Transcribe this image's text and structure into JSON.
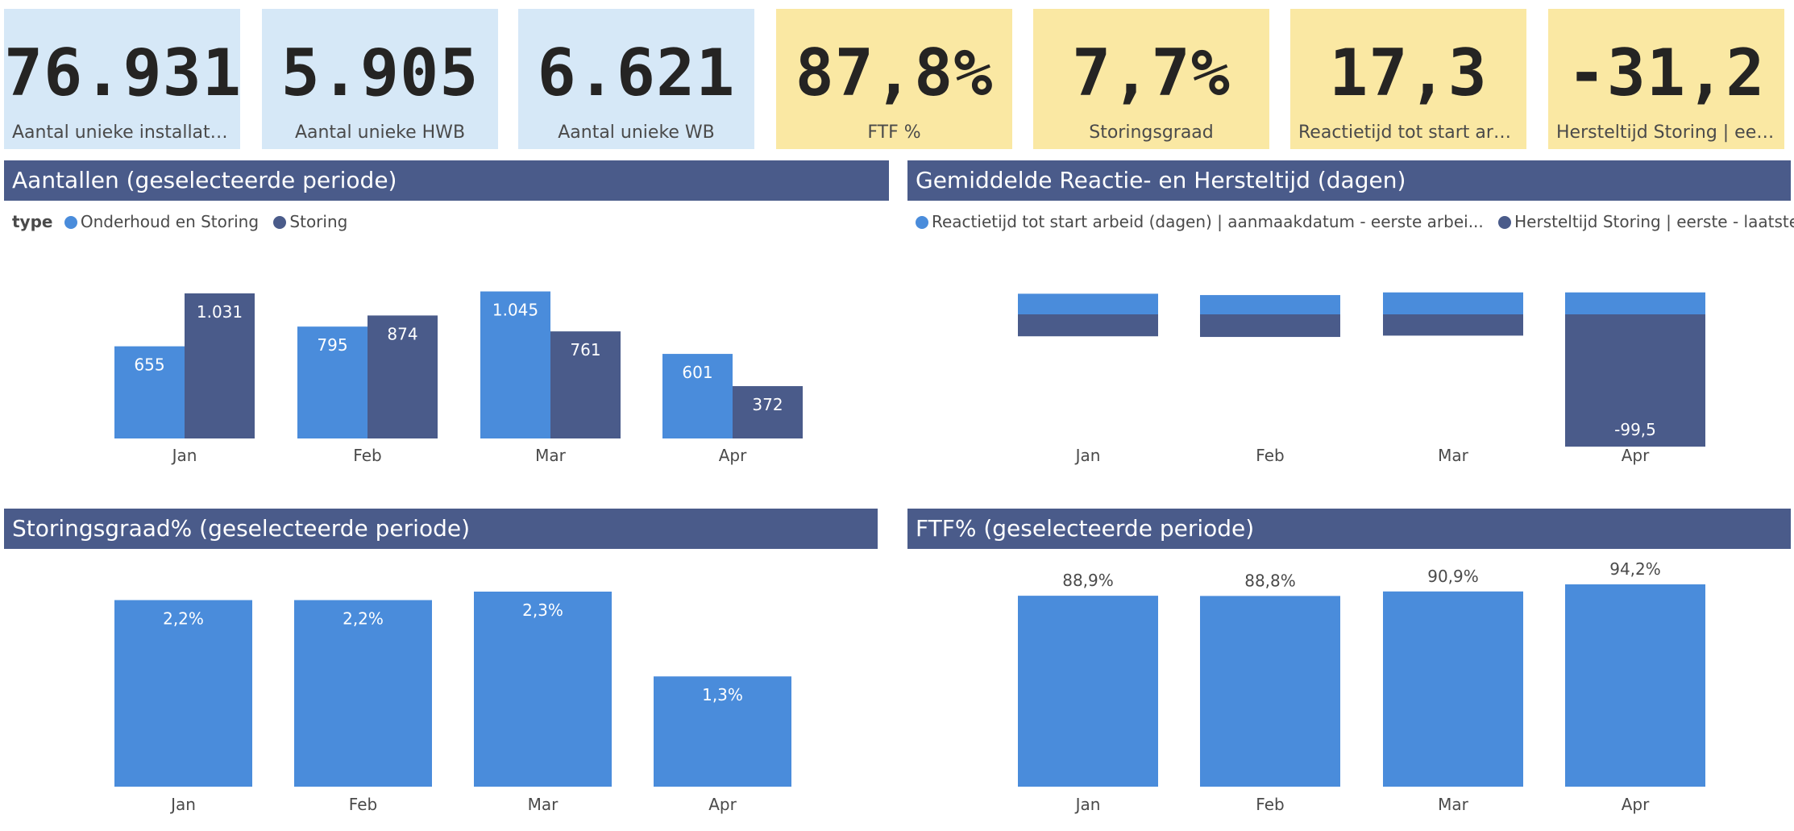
{
  "colors": {
    "light_blue": "#4a8cdb",
    "dark_blue": "#4a5b8a",
    "kpi_blue": "#d6e8f7",
    "kpi_yellow": "#fae8a3"
  },
  "kpis": [
    {
      "value": "76.931",
      "label": "Aantal unieke installaties",
      "style": "blue"
    },
    {
      "value": "5.905",
      "label": "Aantal unieke HWB",
      "style": "blue"
    },
    {
      "value": "6.621",
      "label": "Aantal unieke WB",
      "style": "blue"
    },
    {
      "value": "87,8%",
      "label": "FTF %",
      "style": "yellow"
    },
    {
      "value": "7,7%",
      "label": "Storingsgraad",
      "style": "yellow"
    },
    {
      "value": "17,3",
      "label": "Reactietijd tot start arbei...",
      "style": "yellow"
    },
    {
      "value": "-31,2",
      "label": "Hersteltijd Storing | eerst...",
      "style": "yellow"
    }
  ],
  "panels": {
    "aantallen": {
      "title": "Aantallen (geselecteerde periode)"
    },
    "reactie": {
      "title": "Gemiddelde Reactie- en Hersteltijd (dagen)"
    },
    "storingsgraad": {
      "title": "Storingsgraad% (geselecteerde periode)"
    },
    "ftf": {
      "title": "FTF% (geselecteerde periode)"
    }
  },
  "legend_aantallen": {
    "title": "type",
    "items": [
      "Onderhoud en Storing",
      "Storing"
    ]
  },
  "legend_reactie": {
    "items": [
      "Reactietijd tot start arbeid (dagen) | aanmaakdatum - eerste arbei...",
      "Hersteltijd Storing | eerste - laatste arb..."
    ]
  },
  "chart_data": [
    {
      "id": "aantallen",
      "type": "bar",
      "categories": [
        "Jan",
        "Feb",
        "Mar",
        "Apr"
      ],
      "series": [
        {
          "name": "Onderhoud en Storing",
          "values": [
            655,
            795,
            1045,
            601
          ],
          "labels": [
            "655",
            "795",
            "1.045",
            "601"
          ]
        },
        {
          "name": "Storing",
          "values": [
            1031,
            874,
            761,
            372
          ],
          "labels": [
            "1.031",
            "874",
            "761",
            "372"
          ]
        }
      ],
      "ylim": [
        0,
        1031
      ]
    },
    {
      "id": "reactie",
      "type": "bar",
      "stacked": true,
      "categories": [
        "Jan",
        "Feb",
        "Mar",
        "Apr"
      ],
      "series": [
        {
          "name": "Reactietijd tot start arbeid (dagen) | aanmaakdatum - eerste arbei...",
          "values": [
            15.5,
            14.5,
            16.5,
            16.5
          ]
        },
        {
          "name": "Hersteltijd Storing | eerste - laatste arb...",
          "values": [
            -16.5,
            -17,
            -16,
            -99.5
          ],
          "labels": [
            "",
            "",
            "",
            "-99,5"
          ]
        }
      ]
    },
    {
      "id": "storingsgraad",
      "type": "bar",
      "categories": [
        "Jan",
        "Feb",
        "Mar",
        "Apr"
      ],
      "values": [
        2.2,
        2.2,
        2.3,
        1.3
      ],
      "labels": [
        "2,2%",
        "2,2%",
        "2,3%",
        "1,3%"
      ],
      "ylim": [
        0,
        2.3
      ]
    },
    {
      "id": "ftf",
      "type": "bar",
      "categories": [
        "Jan",
        "Feb",
        "Mar",
        "Apr"
      ],
      "values": [
        88.9,
        88.8,
        90.9,
        94.2
      ],
      "labels": [
        "88,9%",
        "88,8%",
        "90,9%",
        "94,2%"
      ],
      "ylim": [
        0,
        94.2
      ]
    }
  ]
}
